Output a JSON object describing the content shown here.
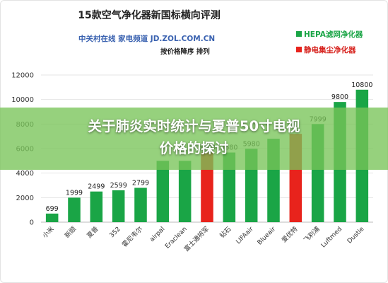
{
  "chart_data": {
    "type": "bar",
    "title": "15款空气净化器新国标横向评测",
    "subtitle": "中关村在线 家电频道   JD.ZOL.COM.CN",
    "sort_note": "按价格降序 排列",
    "categories": [
      "小米",
      "新颐",
      "夏普",
      "352",
      "霍尼韦尔",
      "airpal",
      "Eraclean",
      "富士通将军",
      "钻石",
      "LIFAair",
      "Blueair",
      "爱优特",
      "飞利浦",
      "Luftmed",
      "Dustie"
    ],
    "values": [
      699,
      1999,
      2499,
      2599,
      2799,
      5000,
      5000,
      5680,
      5680,
      5980,
      6800,
      7200,
      7999,
      9800,
      10800
    ],
    "shown_labels": [
      "699",
      "1999",
      "2499",
      "2599",
      "2799",
      "",
      "",
      "5680",
      "5680",
      "5980",
      "",
      "",
      "7999",
      "9800",
      "10800"
    ],
    "bar_colors": [
      "#1aa546",
      "#1aa546",
      "#1aa546",
      "#1aa546",
      "#1aa546",
      "#1aa546",
      "#1aa546",
      "#e8231c",
      "#1aa546",
      "#1aa546",
      "#1aa546",
      "#e8231c",
      "#1aa546",
      "#1aa546",
      "#1aa546"
    ],
    "legend": [
      {
        "label": "HEPA滤网净化器",
        "color": "#1aa546"
      },
      {
        "label": "静电集尘净化器",
        "color": "#e8231c"
      }
    ],
    "yticks": [
      "0",
      "2000",
      "4000",
      "6000",
      "8000",
      "10000",
      "12000"
    ],
    "ylim": [
      0,
      12000
    ],
    "grid": true,
    "legend_position": "top-right"
  },
  "banner": {
    "line1": "关于肺炎实时统计与夏普50寸电视",
    "line2": "价格的探讨"
  }
}
